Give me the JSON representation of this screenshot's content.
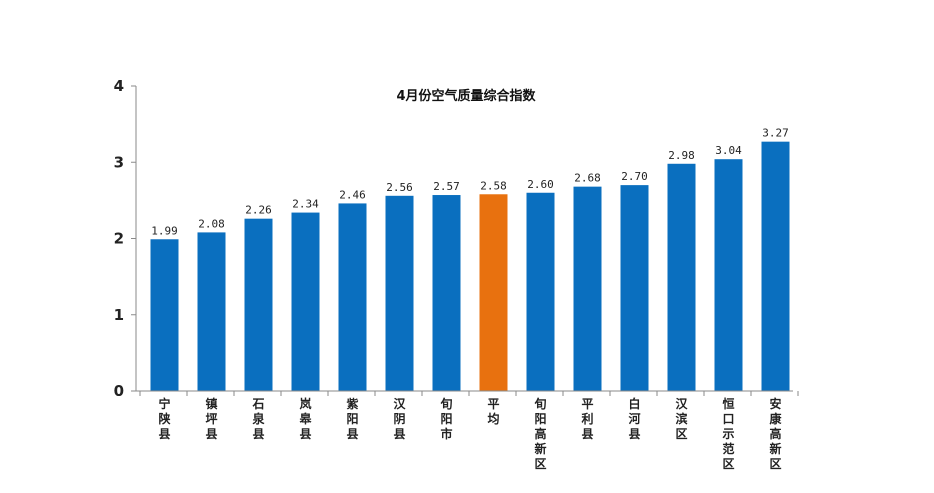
{
  "chart_data": {
    "type": "bar",
    "title": "4月份空气质量综合指数",
    "xlabel": "",
    "ylabel": "",
    "ylim": [
      0,
      4
    ],
    "yticks": [
      0,
      1,
      2,
      3,
      4
    ],
    "grid": false,
    "categories": [
      "宁陕县",
      "镇坪县",
      "石泉县",
      "岚皋县",
      "紫阳县",
      "汉阴县",
      "旬阳市",
      "平均",
      "旬阳高新区",
      "平利县",
      "白河县",
      "汉滨区",
      "恒口示范区",
      "安康高新区"
    ],
    "values": [
      1.99,
      2.08,
      2.26,
      2.34,
      2.46,
      2.56,
      2.57,
      2.58,
      2.6,
      2.68,
      2.7,
      2.98,
      3.04,
      3.27
    ],
    "value_labels": [
      "1.99",
      "2.08",
      "2.26",
      "2.34",
      "2.46",
      "2.56",
      "2.57",
      "2.58",
      "2.60",
      "2.68",
      "2.70",
      "2.98",
      "3.04",
      "3.27"
    ],
    "highlight_category": "平均",
    "colors": {
      "bar": "#0a6fbf",
      "highlight": "#e8710f"
    }
  }
}
